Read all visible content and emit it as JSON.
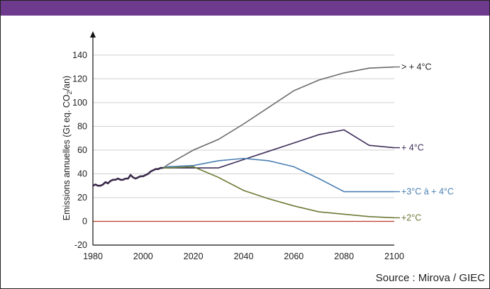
{
  "source_text": "Source : Mirova / GIEC",
  "chart_data": {
    "type": "line",
    "ylabel_main": "Emissions annuelles (Gt eq. CO",
    "ylabel_sub": "2",
    "ylabel_end": "/an)",
    "x_ticks": [
      1980,
      2000,
      2020,
      2040,
      2060,
      2080,
      2100
    ],
    "y_ticks": [
      -20,
      0,
      20,
      40,
      60,
      80,
      100,
      120,
      140
    ],
    "xlim": [
      1980,
      2100
    ],
    "ylim": [
      -20,
      150
    ],
    "grid": "horizontal",
    "historical": {
      "color": "#3a2a4a",
      "x": [
        1980,
        1981,
        1982,
        1983,
        1984,
        1985,
        1986,
        1987,
        1988,
        1989,
        1990,
        1991,
        1992,
        1993,
        1994,
        1995,
        1996,
        1997,
        1998,
        1999,
        2000,
        2001,
        2002,
        2003,
        2004,
        2005,
        2006,
        2007,
        2008
      ],
      "y": [
        30,
        31,
        30,
        30,
        31,
        33,
        32,
        34,
        35,
        35,
        36,
        35,
        35,
        36,
        36,
        39,
        37,
        36,
        37,
        38,
        38,
        39,
        40,
        42,
        43,
        44,
        44,
        45,
        45
      ]
    },
    "series": [
      {
        "name": "> + 4°C",
        "color": "#6b6b6b",
        "x": [
          2010,
          2020,
          2030,
          2040,
          2050,
          2060,
          2070,
          2080,
          2090,
          2100
        ],
        "y": [
          48,
          60,
          69,
          82,
          96,
          110,
          119,
          125,
          129,
          130
        ]
      },
      {
        "name": "+ 4°C",
        "color": "#3f2f5a",
        "x": [
          2010,
          2020,
          2030,
          2040,
          2050,
          2060,
          2070,
          2080,
          2090,
          2100
        ],
        "y": [
          45,
          45,
          45,
          52,
          59,
          66,
          73,
          77,
          64,
          62
        ]
      },
      {
        "name": "+3°C à + 4°C",
        "color": "#4a7fb3",
        "x": [
          2010,
          2020,
          2030,
          2040,
          2050,
          2060,
          2070,
          2080,
          2090,
          2100
        ],
        "y": [
          46,
          47,
          51,
          53,
          51,
          46,
          36,
          25,
          25,
          25
        ]
      },
      {
        "name": "+2°C",
        "color": "#6b7a35",
        "x": [
          2010,
          2020,
          2030,
          2040,
          2050,
          2060,
          2070,
          2080,
          2090,
          2100
        ],
        "y": [
          45,
          46,
          37,
          26,
          19,
          13,
          8,
          6,
          4,
          3
        ]
      }
    ],
    "zero_line_color": "#c0392b",
    "label_colors": {
      "gt4": "#222222",
      "p4": "#3f2f5a",
      "p3": "#4a7fb3",
      "p2": "#6b7a35"
    }
  }
}
